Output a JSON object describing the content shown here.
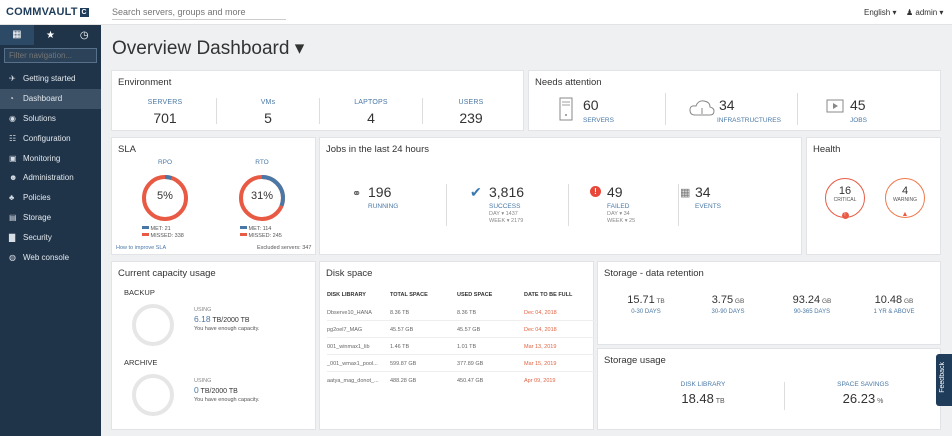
{
  "header": {
    "logo": "COMMVAULT",
    "logo_mark": "C",
    "search_placeholder": "Search servers, groups and more",
    "language": "English ▾",
    "user": "admin ▾"
  },
  "sidebar": {
    "filter_placeholder": "Filter navigation...",
    "items": [
      {
        "icon": "✈",
        "label": "Getting started"
      },
      {
        "icon": "◔",
        "label": "Dashboard"
      },
      {
        "icon": "◉",
        "label": "Solutions"
      },
      {
        "icon": "☷",
        "label": "Configuration"
      },
      {
        "icon": "▣",
        "label": "Monitoring"
      },
      {
        "icon": "☻",
        "label": "Administration"
      },
      {
        "icon": "♣",
        "label": "Policies"
      },
      {
        "icon": "▤",
        "label": "Storage"
      },
      {
        "icon": "▇",
        "label": "Security"
      },
      {
        "icon": "◍",
        "label": "Web console"
      }
    ]
  },
  "page": {
    "title": "Overview Dashboard ▾"
  },
  "environment": {
    "title": "Environment",
    "servers_label": "SERVERS",
    "servers": "701",
    "vms_label": "VMs",
    "vms": "5",
    "laptops_label": "LAPTOPS",
    "laptops": "4",
    "users_label": "USERS",
    "users": "239"
  },
  "attention": {
    "title": "Needs attention",
    "servers": "60",
    "servers_label": "SERVERS",
    "infra": "34",
    "infra_label": "INFRASTRUCTURES",
    "jobs": "45",
    "jobs_label": "JOBS"
  },
  "sla": {
    "title": "SLA",
    "rpo_label": "RPO",
    "rpo_value": "5%",
    "rpo_met_fraction": 0.05,
    "rpo_met": "MET: 21",
    "rpo_missed": "MISSED: 338",
    "rto_label": "RTO",
    "rto_value": "31%",
    "rto_met_fraction": 0.31,
    "rto_met": "MET: 114",
    "rto_missed": "MISSED: 245",
    "improve_link": "How to improve SLA",
    "excluded": "Excluded servers: 347",
    "met_color": "#4a78a6",
    "missed_color": "#e85a44"
  },
  "jobs": {
    "title": "Jobs in the last 24 hours",
    "running": "196",
    "running_label": "RUNNING",
    "success": "3,816",
    "success_label": "SUCCESS",
    "success_day": "DAY ▾ 1437",
    "success_week": "WEEK ▾ 2179",
    "failed": "49",
    "failed_label": "FAILED",
    "failed_day": "DAY ▾ 34",
    "failed_week": "WEEK ▾ 25",
    "events": "34",
    "events_label": "EVENTS"
  },
  "health": {
    "title": "Health",
    "critical": "16",
    "critical_label": "CRITICAL",
    "warning": "4",
    "warning_label": "WARNING"
  },
  "capacity": {
    "title": "Current capacity usage",
    "backup_label": "BACKUP",
    "backup_using": "USING",
    "backup_value": "6.18",
    "backup_unit": " TB/2000 TB",
    "backup_msg": "You have enough capacity.",
    "archive_label": "ARCHIVE",
    "archive_using": "USING",
    "archive_value": "0",
    "archive_unit": " TB/2000 TB",
    "archive_msg": "You have enough capacity."
  },
  "disk": {
    "title": "Disk space",
    "headers": [
      "DISK LIBRARY",
      "TOTAL SPACE",
      "USED SPACE",
      "DATE TO BE FULL"
    ],
    "rows": [
      [
        "Dbserve10_HANA",
        "8.36 TB",
        "8.36 TB",
        "Dec 04, 2018"
      ],
      [
        "pg2oel7_MAG",
        "45.57 GB",
        "45.57 GB",
        "Dec 04, 2018"
      ],
      [
        "001_winmax1_lib",
        "1.46 TB",
        "1.01 TB",
        "Mar 13, 2019"
      ],
      [
        "_001_wmax1_pool...",
        "599.87 GB",
        "377.89 GB",
        "Mar 15, 2019"
      ],
      [
        "aatya_mag_donot_...",
        "488.28 GB",
        "450.47 GB",
        "Apr 09, 2019"
      ]
    ]
  },
  "retention": {
    "title": "Storage - data retention",
    "items": [
      {
        "value": "15.71",
        "unit": " TB",
        "label": "0-30 DAYS"
      },
      {
        "value": "3.75",
        "unit": " GB",
        "label": "30-90 DAYS"
      },
      {
        "value": "93.24",
        "unit": " GB",
        "label": "90-365 DAYS"
      },
      {
        "value": "10.48",
        "unit": " GB",
        "label": "1 YR & ABOVE"
      }
    ]
  },
  "usage": {
    "title": "Storage usage",
    "lib_label": "DISK LIBRARY",
    "lib_value": "18.48",
    "lib_unit": " TB",
    "save_label": "SPACE SAVINGS",
    "save_value": "26.23",
    "save_unit": " %"
  },
  "feedback": {
    "label": "Feedback"
  }
}
